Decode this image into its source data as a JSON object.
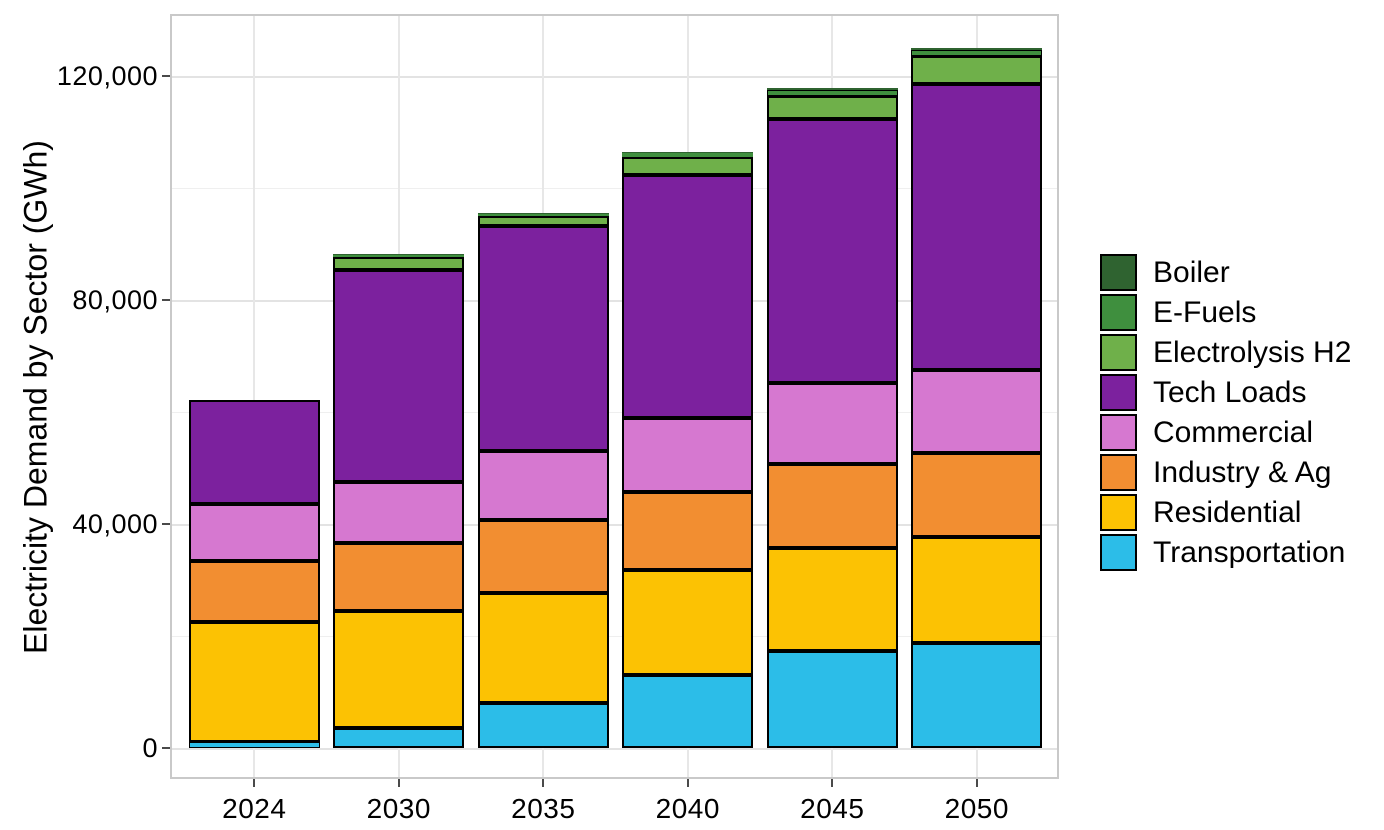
{
  "chart_data": {
    "type": "bar",
    "stacked": true,
    "title": "",
    "xlabel": "",
    "ylabel": "Electricity Demand by Sector (GWh)",
    "categories": [
      "2024",
      "2030",
      "2035",
      "2040",
      "2045",
      "2050"
    ],
    "series_order": "first series is top of stack (matches legend top-to-bottom)",
    "series": [
      {
        "name": "Boiler",
        "color": "#2f6330",
        "values": [
          0,
          200,
          200,
          300,
          300,
          400
        ]
      },
      {
        "name": "E-Fuels",
        "color": "#3f8f3e",
        "values": [
          0,
          300,
          300,
          700,
          1100,
          1100
        ]
      },
      {
        "name": "Electrolysis H2",
        "color": "#6fb04a",
        "values": [
          0,
          2400,
          1800,
          3200,
          4200,
          4900
        ]
      },
      {
        "name": "Tech Loads",
        "color": "#7c219e",
        "values": [
          18600,
          37900,
          40100,
          43400,
          47100,
          51100
        ]
      },
      {
        "name": "Commercial",
        "color": "#d678d0",
        "values": [
          10100,
          10800,
          12300,
          13200,
          14400,
          14800
        ]
      },
      {
        "name": "Industry & Ag",
        "color": "#f28e31",
        "values": [
          11000,
          12200,
          13000,
          13800,
          15100,
          15000
        ]
      },
      {
        "name": "Residential",
        "color": "#fcc203",
        "values": [
          21400,
          20800,
          19700,
          18800,
          18300,
          18900
        ]
      },
      {
        "name": "Transportation",
        "color": "#2cbde8",
        "values": [
          1000,
          3600,
          8000,
          13000,
          17300,
          18700
        ]
      }
    ],
    "totals": [
      62100,
      88200,
      95400,
      106400,
      117800,
      124900
    ],
    "ylim": [
      0,
      131000
    ],
    "yticks": [
      {
        "value": 0,
        "label": "0"
      },
      {
        "value": 40000,
        "label": "40,000"
      },
      {
        "value": 80000,
        "label": "80,000"
      },
      {
        "value": 120000,
        "label": "120,000"
      }
    ],
    "minor_gridlines": [
      20000,
      60000,
      100000
    ],
    "grid": "horizontal major+minor, vertical at category centers",
    "legend_position": "right",
    "bar_border_color": "#000000"
  }
}
